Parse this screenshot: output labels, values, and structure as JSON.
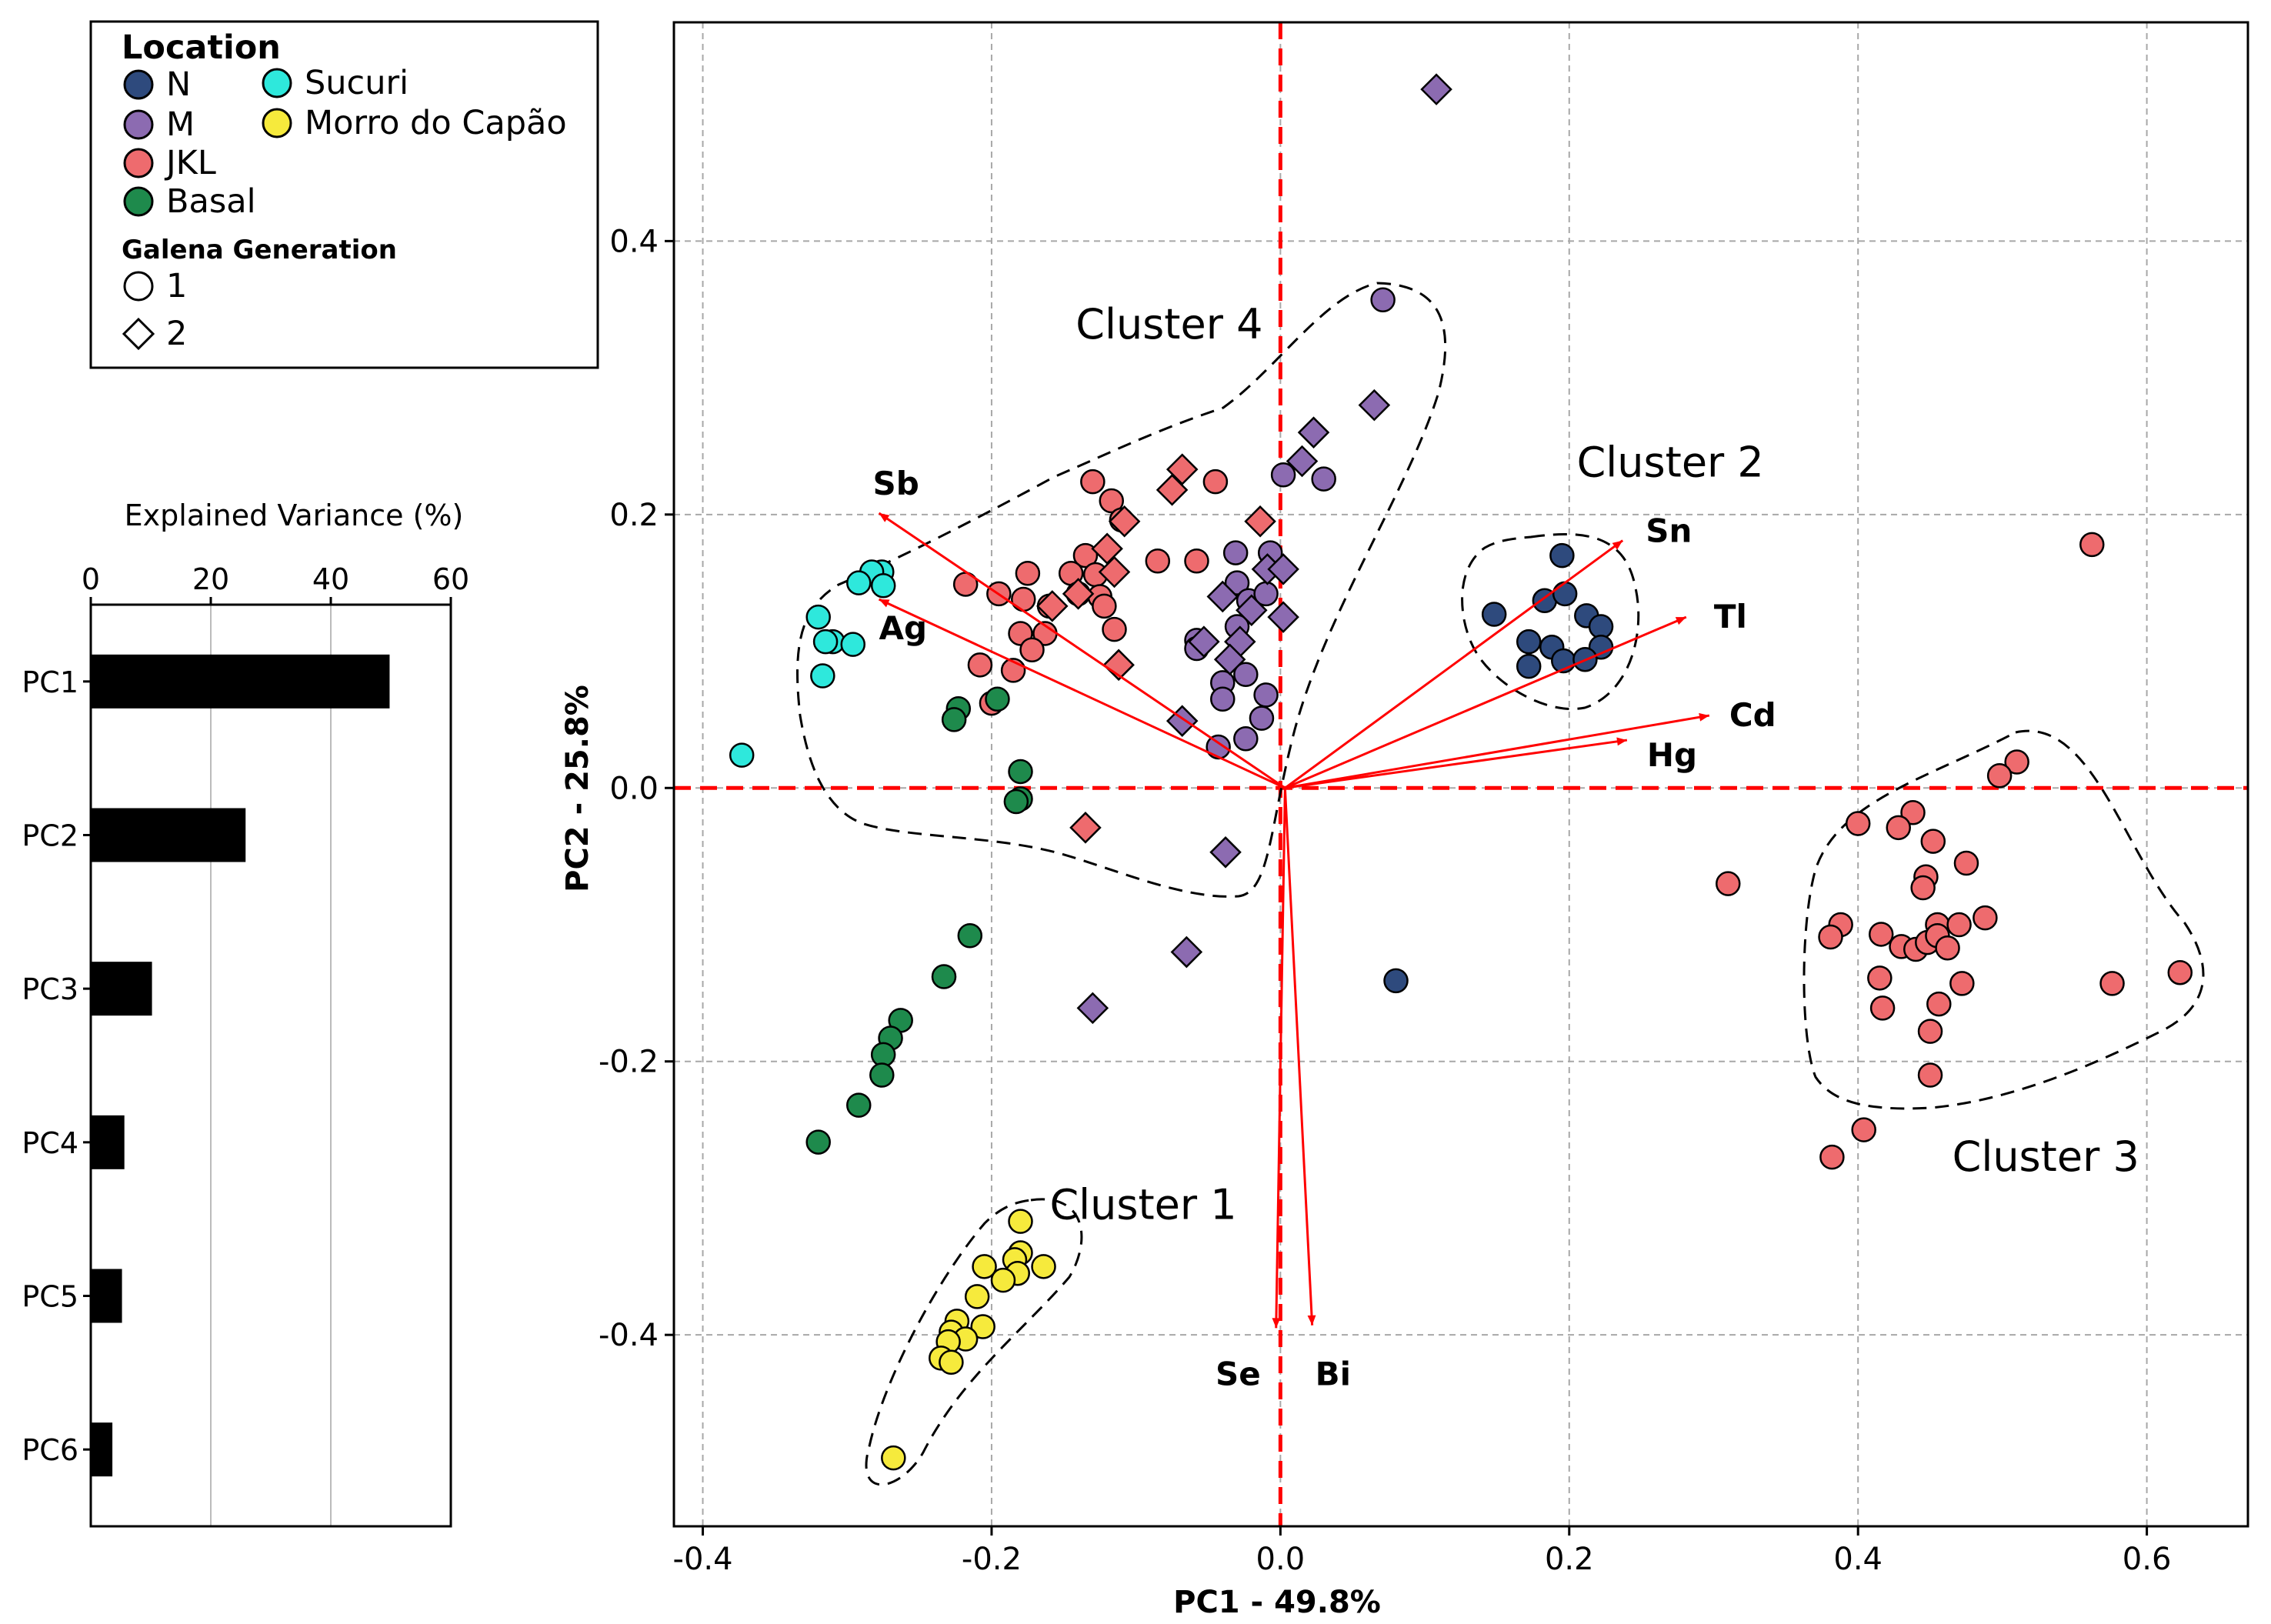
{
  "colors": {
    "N": "#2e4a7d",
    "M": "#8c6bb1",
    "JKL": "#ee6b6e",
    "Basal": "#1e8a4c",
    "Sucuri": "#2ee8dc",
    "Morro do Capão": "#f6ea3c",
    "loading": "#ff0000",
    "axisline": "#ff0000",
    "bar": "#000000"
  },
  "legend": {
    "location_title": "Location",
    "locations": [
      "N",
      "M",
      "JKL",
      "Basal",
      "Sucuri",
      "Morro do Capão"
    ],
    "generation_title": "Galena Generation",
    "generations": [
      {
        "label": "1",
        "marker": "circle"
      },
      {
        "label": "2",
        "marker": "diamond"
      }
    ]
  },
  "chart_data": [
    {
      "type": "bar",
      "orientation": "horizontal",
      "title": "Explained Variance (%)",
      "categories": [
        "PC1",
        "PC2",
        "PC3",
        "PC4",
        "PC5",
        "PC6"
      ],
      "values": [
        49.8,
        25.8,
        10.2,
        5.6,
        5.2,
        3.6
      ],
      "xlim": [
        0,
        60
      ],
      "xticks": [
        "0",
        "20",
        "40",
        "60"
      ],
      "grid": true
    },
    {
      "type": "scatter",
      "subtype": "pca-biplot",
      "xlabel": "PC1 - 49.8%",
      "ylabel": "PC2 - 25.8%",
      "xlim": [
        -0.42,
        0.67
      ],
      "ylim": [
        -0.54,
        0.56
      ],
      "xticks": [
        "-0.4",
        "-0.2",
        "0.0",
        "0.2",
        "0.4",
        "0.6"
      ],
      "yticks": [
        "-0.4",
        "-0.2",
        "0.0",
        "0.2",
        "0.4"
      ],
      "grid": true,
      "points": [
        {
          "x": 0.195,
          "y": 0.17,
          "loc": "N",
          "gen": 1
        },
        {
          "x": 0.148,
          "y": 0.127,
          "loc": "N",
          "gen": 1
        },
        {
          "x": 0.183,
          "y": 0.137,
          "loc": "N",
          "gen": 1
        },
        {
          "x": 0.197,
          "y": 0.142,
          "loc": "N",
          "gen": 1
        },
        {
          "x": 0.172,
          "y": 0.107,
          "loc": "N",
          "gen": 1
        },
        {
          "x": 0.188,
          "y": 0.103,
          "loc": "N",
          "gen": 1
        },
        {
          "x": 0.172,
          "y": 0.089,
          "loc": "N",
          "gen": 1
        },
        {
          "x": 0.196,
          "y": 0.093,
          "loc": "N",
          "gen": 1
        },
        {
          "x": 0.212,
          "y": 0.126,
          "loc": "N",
          "gen": 1
        },
        {
          "x": 0.222,
          "y": 0.118,
          "loc": "N",
          "gen": 1
        },
        {
          "x": 0.222,
          "y": 0.103,
          "loc": "N",
          "gen": 1
        },
        {
          "x": 0.211,
          "y": 0.094,
          "loc": "N",
          "gen": 1
        },
        {
          "x": 0.08,
          "y": -0.141,
          "loc": "N",
          "gen": 1
        },
        {
          "x": 0.071,
          "y": 0.357,
          "loc": "M",
          "gen": 1
        },
        {
          "x": 0.002,
          "y": 0.229,
          "loc": "M",
          "gen": 1
        },
        {
          "x": 0.03,
          "y": 0.226,
          "loc": "M",
          "gen": 1
        },
        {
          "x": -0.031,
          "y": 0.172,
          "loc": "M",
          "gen": 1
        },
        {
          "x": -0.007,
          "y": 0.172,
          "loc": "M",
          "gen": 1
        },
        {
          "x": -0.03,
          "y": 0.15,
          "loc": "M",
          "gen": 1
        },
        {
          "x": -0.022,
          "y": 0.137,
          "loc": "M",
          "gen": 1
        },
        {
          "x": -0.01,
          "y": 0.142,
          "loc": "M",
          "gen": 1
        },
        {
          "x": -0.03,
          "y": 0.118,
          "loc": "M",
          "gen": 1
        },
        {
          "x": -0.058,
          "y": 0.108,
          "loc": "M",
          "gen": 1
        },
        {
          "x": -0.058,
          "y": 0.102,
          "loc": "M",
          "gen": 1
        },
        {
          "x": -0.04,
          "y": 0.077,
          "loc": "M",
          "gen": 1
        },
        {
          "x": -0.024,
          "y": 0.083,
          "loc": "M",
          "gen": 1
        },
        {
          "x": -0.01,
          "y": 0.068,
          "loc": "M",
          "gen": 1
        },
        {
          "x": -0.04,
          "y": 0.065,
          "loc": "M",
          "gen": 1
        },
        {
          "x": -0.013,
          "y": 0.051,
          "loc": "M",
          "gen": 1
        },
        {
          "x": -0.024,
          "y": 0.036,
          "loc": "M",
          "gen": 1
        },
        {
          "x": -0.043,
          "y": 0.03,
          "loc": "M",
          "gen": 1
        },
        {
          "x": 0.108,
          "y": 0.511,
          "loc": "M",
          "gen": 2
        },
        {
          "x": 0.065,
          "y": 0.28,
          "loc": "M",
          "gen": 2
        },
        {
          "x": 0.023,
          "y": 0.26,
          "loc": "M",
          "gen": 2
        },
        {
          "x": 0.015,
          "y": 0.239,
          "loc": "M",
          "gen": 2
        },
        {
          "x": -0.009,
          "y": 0.16,
          "loc": "M",
          "gen": 2
        },
        {
          "x": 0.002,
          "y": 0.16,
          "loc": "M",
          "gen": 2
        },
        {
          "x": -0.04,
          "y": 0.14,
          "loc": "M",
          "gen": 2
        },
        {
          "x": -0.02,
          "y": 0.13,
          "loc": "M",
          "gen": 2
        },
        {
          "x": 0.002,
          "y": 0.125,
          "loc": "M",
          "gen": 2
        },
        {
          "x": -0.053,
          "y": 0.107,
          "loc": "M",
          "gen": 2
        },
        {
          "x": -0.028,
          "y": 0.107,
          "loc": "M",
          "gen": 2
        },
        {
          "x": -0.035,
          "y": 0.094,
          "loc": "M",
          "gen": 2
        },
        {
          "x": -0.068,
          "y": 0.049,
          "loc": "M",
          "gen": 2
        },
        {
          "x": -0.038,
          "y": -0.047,
          "loc": "M",
          "gen": 2
        },
        {
          "x": -0.065,
          "y": -0.12,
          "loc": "M",
          "gen": 2
        },
        {
          "x": -0.13,
          "y": -0.161,
          "loc": "M",
          "gen": 2
        },
        {
          "x": -0.13,
          "y": 0.224,
          "loc": "JKL",
          "gen": 1
        },
        {
          "x": -0.045,
          "y": 0.224,
          "loc": "JKL",
          "gen": 1
        },
        {
          "x": -0.117,
          "y": 0.21,
          "loc": "JKL",
          "gen": 1
        },
        {
          "x": -0.11,
          "y": 0.196,
          "loc": "JKL",
          "gen": 1
        },
        {
          "x": -0.135,
          "y": 0.17,
          "loc": "JKL",
          "gen": 1
        },
        {
          "x": -0.085,
          "y": 0.166,
          "loc": "JKL",
          "gen": 1
        },
        {
          "x": -0.058,
          "y": 0.166,
          "loc": "JKL",
          "gen": 1
        },
        {
          "x": -0.145,
          "y": 0.157,
          "loc": "JKL",
          "gen": 1
        },
        {
          "x": -0.128,
          "y": 0.156,
          "loc": "JKL",
          "gen": 1
        },
        {
          "x": -0.175,
          "y": 0.157,
          "loc": "JKL",
          "gen": 1
        },
        {
          "x": -0.218,
          "y": 0.149,
          "loc": "JKL",
          "gen": 1
        },
        {
          "x": -0.195,
          "y": 0.142,
          "loc": "JKL",
          "gen": 1
        },
        {
          "x": -0.14,
          "y": 0.142,
          "loc": "JKL",
          "gen": 1
        },
        {
          "x": -0.125,
          "y": 0.14,
          "loc": "JKL",
          "gen": 1
        },
        {
          "x": -0.178,
          "y": 0.138,
          "loc": "JKL",
          "gen": 1
        },
        {
          "x": -0.16,
          "y": 0.133,
          "loc": "JKL",
          "gen": 1
        },
        {
          "x": -0.122,
          "y": 0.133,
          "loc": "JKL",
          "gen": 1
        },
        {
          "x": -0.18,
          "y": 0.113,
          "loc": "JKL",
          "gen": 1
        },
        {
          "x": -0.163,
          "y": 0.113,
          "loc": "JKL",
          "gen": 1
        },
        {
          "x": -0.115,
          "y": 0.116,
          "loc": "JKL",
          "gen": 1
        },
        {
          "x": -0.172,
          "y": 0.101,
          "loc": "JKL",
          "gen": 1
        },
        {
          "x": -0.208,
          "y": 0.09,
          "loc": "JKL",
          "gen": 1
        },
        {
          "x": -0.185,
          "y": 0.086,
          "loc": "JKL",
          "gen": 1
        },
        {
          "x": -0.2,
          "y": 0.062,
          "loc": "JKL",
          "gen": 1
        },
        {
          "x": 0.562,
          "y": 0.178,
          "loc": "JKL",
          "gen": 1
        },
        {
          "x": 0.51,
          "y": 0.019,
          "loc": "JKL",
          "gen": 1
        },
        {
          "x": 0.498,
          "y": 0.009,
          "loc": "JKL",
          "gen": 1
        },
        {
          "x": 0.438,
          "y": -0.018,
          "loc": "JKL",
          "gen": 1
        },
        {
          "x": 0.4,
          "y": -0.026,
          "loc": "JKL",
          "gen": 1
        },
        {
          "x": 0.428,
          "y": -0.029,
          "loc": "JKL",
          "gen": 1
        },
        {
          "x": 0.452,
          "y": -0.039,
          "loc": "JKL",
          "gen": 1
        },
        {
          "x": 0.31,
          "y": -0.07,
          "loc": "JKL",
          "gen": 1
        },
        {
          "x": 0.475,
          "y": -0.055,
          "loc": "JKL",
          "gen": 1
        },
        {
          "x": 0.447,
          "y": -0.065,
          "loc": "JKL",
          "gen": 1
        },
        {
          "x": 0.445,
          "y": -0.073,
          "loc": "JKL",
          "gen": 1
        },
        {
          "x": 0.388,
          "y": -0.1,
          "loc": "JKL",
          "gen": 1
        },
        {
          "x": 0.381,
          "y": -0.109,
          "loc": "JKL",
          "gen": 1
        },
        {
          "x": 0.416,
          "y": -0.107,
          "loc": "JKL",
          "gen": 1
        },
        {
          "x": 0.455,
          "y": -0.1,
          "loc": "JKL",
          "gen": 1
        },
        {
          "x": 0.47,
          "y": -0.1,
          "loc": "JKL",
          "gen": 1
        },
        {
          "x": 0.488,
          "y": -0.095,
          "loc": "JKL",
          "gen": 1
        },
        {
          "x": 0.43,
          "y": -0.116,
          "loc": "JKL",
          "gen": 1
        },
        {
          "x": 0.44,
          "y": -0.118,
          "loc": "JKL",
          "gen": 1
        },
        {
          "x": 0.448,
          "y": -0.113,
          "loc": "JKL",
          "gen": 1
        },
        {
          "x": 0.455,
          "y": -0.108,
          "loc": "JKL",
          "gen": 1
        },
        {
          "x": 0.462,
          "y": -0.117,
          "loc": "JKL",
          "gen": 1
        },
        {
          "x": 0.415,
          "y": -0.139,
          "loc": "JKL",
          "gen": 1
        },
        {
          "x": 0.472,
          "y": -0.143,
          "loc": "JKL",
          "gen": 1
        },
        {
          "x": 0.576,
          "y": -0.143,
          "loc": "JKL",
          "gen": 1
        },
        {
          "x": 0.623,
          "y": -0.135,
          "loc": "JKL",
          "gen": 1
        },
        {
          "x": 0.417,
          "y": -0.161,
          "loc": "JKL",
          "gen": 1
        },
        {
          "x": 0.456,
          "y": -0.158,
          "loc": "JKL",
          "gen": 1
        },
        {
          "x": 0.45,
          "y": -0.178,
          "loc": "JKL",
          "gen": 1
        },
        {
          "x": 0.45,
          "y": -0.21,
          "loc": "JKL",
          "gen": 1
        },
        {
          "x": 0.404,
          "y": -0.25,
          "loc": "JKL",
          "gen": 1
        },
        {
          "x": 0.382,
          "y": -0.27,
          "loc": "JKL",
          "gen": 1
        },
        {
          "x": -0.068,
          "y": 0.233,
          "loc": "JKL",
          "gen": 2
        },
        {
          "x": -0.075,
          "y": 0.218,
          "loc": "JKL",
          "gen": 2
        },
        {
          "x": -0.014,
          "y": 0.195,
          "loc": "JKL",
          "gen": 2
        },
        {
          "x": -0.108,
          "y": 0.195,
          "loc": "JKL",
          "gen": 2
        },
        {
          "x": -0.12,
          "y": 0.175,
          "loc": "JKL",
          "gen": 2
        },
        {
          "x": -0.115,
          "y": 0.158,
          "loc": "JKL",
          "gen": 2
        },
        {
          "x": -0.14,
          "y": 0.142,
          "loc": "JKL",
          "gen": 2
        },
        {
          "x": -0.158,
          "y": 0.133,
          "loc": "JKL",
          "gen": 2
        },
        {
          "x": -0.112,
          "y": 0.09,
          "loc": "JKL",
          "gen": 2
        },
        {
          "x": -0.135,
          "y": -0.029,
          "loc": "JKL",
          "gen": 2
        },
        {
          "x": -0.223,
          "y": 0.058,
          "loc": "Basal",
          "gen": 1
        },
        {
          "x": -0.196,
          "y": 0.065,
          "loc": "Basal",
          "gen": 1
        },
        {
          "x": -0.226,
          "y": 0.05,
          "loc": "Basal",
          "gen": 1
        },
        {
          "x": -0.18,
          "y": 0.012,
          "loc": "Basal",
          "gen": 1
        },
        {
          "x": -0.18,
          "y": -0.008,
          "loc": "Basal",
          "gen": 1
        },
        {
          "x": -0.183,
          "y": -0.01,
          "loc": "Basal",
          "gen": 1
        },
        {
          "x": -0.215,
          "y": -0.108,
          "loc": "Basal",
          "gen": 1
        },
        {
          "x": -0.233,
          "y": -0.138,
          "loc": "Basal",
          "gen": 1
        },
        {
          "x": -0.263,
          "y": -0.17,
          "loc": "Basal",
          "gen": 1
        },
        {
          "x": -0.27,
          "y": -0.183,
          "loc": "Basal",
          "gen": 1
        },
        {
          "x": -0.275,
          "y": -0.195,
          "loc": "Basal",
          "gen": 1
        },
        {
          "x": -0.276,
          "y": -0.21,
          "loc": "Basal",
          "gen": 1
        },
        {
          "x": -0.292,
          "y": -0.232,
          "loc": "Basal",
          "gen": 1
        },
        {
          "x": -0.32,
          "y": -0.259,
          "loc": "Basal",
          "gen": 1
        },
        {
          "x": -0.276,
          "y": 0.158,
          "loc": "Sucuri",
          "gen": 1
        },
        {
          "x": -0.283,
          "y": 0.158,
          "loc": "Sucuri",
          "gen": 1
        },
        {
          "x": -0.292,
          "y": 0.15,
          "loc": "Sucuri",
          "gen": 1
        },
        {
          "x": -0.275,
          "y": 0.148,
          "loc": "Sucuri",
          "gen": 1
        },
        {
          "x": -0.32,
          "y": 0.125,
          "loc": "Sucuri",
          "gen": 1
        },
        {
          "x": -0.31,
          "y": 0.107,
          "loc": "Sucuri",
          "gen": 1
        },
        {
          "x": -0.296,
          "y": 0.105,
          "loc": "Sucuri",
          "gen": 1
        },
        {
          "x": -0.315,
          "y": 0.107,
          "loc": "Sucuri",
          "gen": 1
        },
        {
          "x": -0.317,
          "y": 0.082,
          "loc": "Sucuri",
          "gen": 1
        },
        {
          "x": -0.373,
          "y": 0.024,
          "loc": "Sucuri",
          "gen": 1
        },
        {
          "x": -0.18,
          "y": -0.317,
          "loc": "Morro do Capão",
          "gen": 1
        },
        {
          "x": -0.18,
          "y": -0.34,
          "loc": "Morro do Capão",
          "gen": 1
        },
        {
          "x": -0.184,
          "y": -0.345,
          "loc": "Morro do Capão",
          "gen": 1
        },
        {
          "x": -0.205,
          "y": -0.35,
          "loc": "Morro do Capão",
          "gen": 1
        },
        {
          "x": -0.164,
          "y": -0.35,
          "loc": "Morro do Capão",
          "gen": 1
        },
        {
          "x": -0.182,
          "y": -0.355,
          "loc": "Morro do Capão",
          "gen": 1
        },
        {
          "x": -0.192,
          "y": -0.36,
          "loc": "Morro do Capão",
          "gen": 1
        },
        {
          "x": -0.21,
          "y": -0.372,
          "loc": "Morro do Capão",
          "gen": 1
        },
        {
          "x": -0.224,
          "y": -0.39,
          "loc": "Morro do Capão",
          "gen": 1
        },
        {
          "x": -0.206,
          "y": -0.394,
          "loc": "Morro do Capão",
          "gen": 1
        },
        {
          "x": -0.228,
          "y": -0.398,
          "loc": "Morro do Capão",
          "gen": 1
        },
        {
          "x": -0.218,
          "y": -0.403,
          "loc": "Morro do Capão",
          "gen": 1
        },
        {
          "x": -0.23,
          "y": -0.405,
          "loc": "Morro do Capão",
          "gen": 1
        },
        {
          "x": -0.235,
          "y": -0.417,
          "loc": "Morro do Capão",
          "gen": 1
        },
        {
          "x": -0.228,
          "y": -0.42,
          "loc": "Morro do Capão",
          "gen": 1
        },
        {
          "x": -0.268,
          "y": -0.49,
          "loc": "Morro do Capão",
          "gen": 1
        }
      ],
      "loadings": [
        {
          "label": "Sb",
          "x": -0.278,
          "y": 0.201
        },
        {
          "label": "Ag",
          "x": -0.278,
          "y": 0.138
        },
        {
          "label": "Sn",
          "x": 0.237,
          "y": 0.181
        },
        {
          "label": "Tl",
          "x": 0.281,
          "y": 0.125
        },
        {
          "label": "Cd",
          "x": 0.297,
          "y": 0.053
        },
        {
          "label": "Hg",
          "x": 0.24,
          "y": 0.035
        },
        {
          "label": "Se",
          "x": -0.003,
          "y": -0.395
        },
        {
          "label": "Bi",
          "x": 0.022,
          "y": -0.393
        }
      ],
      "clusters": [
        {
          "label": "Cluster 1",
          "x": -0.095,
          "y": -0.305
        },
        {
          "label": "Cluster 2",
          "x": 0.27,
          "y": 0.238
        },
        {
          "label": "Cluster 3",
          "x": 0.53,
          "y": -0.27
        },
        {
          "label": "Cluster 4",
          "x": -0.077,
          "y": 0.339
        }
      ]
    }
  ]
}
